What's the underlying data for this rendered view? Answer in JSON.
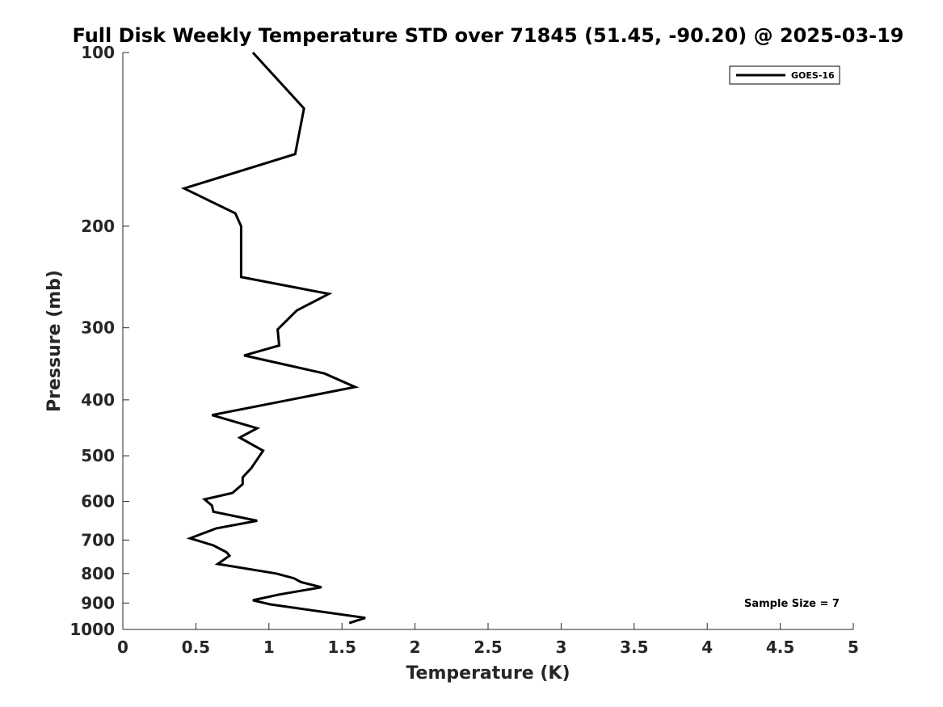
{
  "chart_data": {
    "type": "line",
    "title": "Full Disk Weekly Temperature STD over 71845 (51.45, -90.20) @ 2025-03-19",
    "xlabel": "Temperature (K)",
    "ylabel": "Pressure (mb)",
    "xlim": [
      0,
      5
    ],
    "ylim": [
      100,
      1000
    ],
    "y_scale": "log",
    "y_reversed": true,
    "x_ticks": [
      "0",
      "0.5",
      "1",
      "1.5",
      "2",
      "2.5",
      "3",
      "3.5",
      "4",
      "4.5",
      "5"
    ],
    "y_ticks": [
      "100",
      "200",
      "300",
      "400",
      "500",
      "600",
      "700",
      "800",
      "900",
      "1000"
    ],
    "grid": false,
    "legend_position": "top-right",
    "series": [
      {
        "name": "GOES-16",
        "color": "#000000",
        "x": [
          0.89,
          1.24,
          1.18,
          0.42,
          0.77,
          0.81,
          0.81,
          1.41,
          1.19,
          1.06,
          1.07,
          0.83,
          1.38,
          1.59,
          0.61,
          0.92,
          0.8,
          0.96,
          0.88,
          0.82,
          0.82,
          0.75,
          0.56,
          0.61,
          0.62,
          0.92,
          0.64,
          0.46,
          0.62,
          0.71,
          0.73,
          0.65,
          1.05,
          1.17,
          1.22,
          1.36,
          1.07,
          0.89,
          1.01,
          1.66,
          1.55
        ],
        "y": [
          100,
          125,
          150,
          172,
          190,
          200,
          245,
          262,
          280,
          302,
          322,
          335,
          360,
          380,
          425,
          448,
          465,
          490,
          525,
          545,
          560,
          580,
          595,
          610,
          625,
          648,
          668,
          695,
          715,
          735,
          745,
          770,
          800,
          815,
          828,
          845,
          870,
          890,
          905,
          955,
          975
        ]
      }
    ],
    "annotations": [
      "Sample Size = 7"
    ]
  }
}
